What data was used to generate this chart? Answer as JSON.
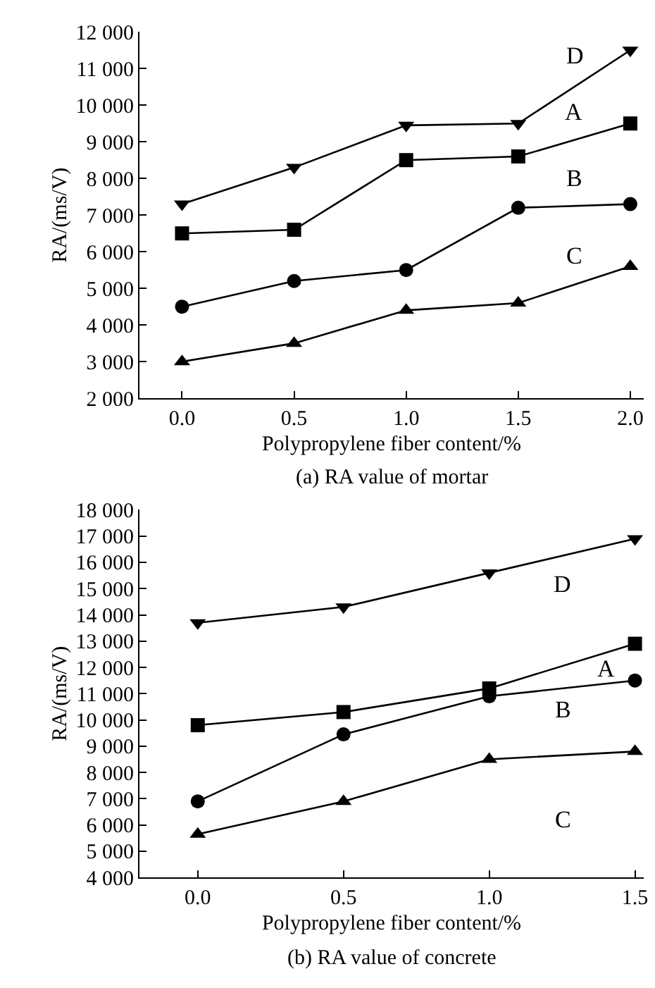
{
  "chart_data": [
    {
      "type": "line",
      "title": "(a) RA value of mortar",
      "xlabel": "Polypropylene fiber content/%",
      "ylabel": "RA/(ms/V)",
      "x": [
        0.0,
        0.5,
        1.0,
        1.5,
        2.0
      ],
      "xlim": [
        -0.19,
        2.06
      ],
      "xticks": [
        {
          "value": 0,
          "label": "0.0"
        },
        {
          "value": 0.5,
          "label": "0.5"
        },
        {
          "value": 1,
          "label": "1.0"
        },
        {
          "value": 1.5,
          "label": "1.5"
        },
        {
          "value": 2,
          "label": "2.0"
        }
      ],
      "ylim": [
        2000,
        12000
      ],
      "yticks": [
        {
          "value": 2000,
          "label": "2 000"
        },
        {
          "value": 3000,
          "label": "3 000"
        },
        {
          "value": 4000,
          "label": "4 000"
        },
        {
          "value": 5000,
          "label": "5 000"
        },
        {
          "value": 6000,
          "label": "6 000"
        },
        {
          "value": 7000,
          "label": "7 000"
        },
        {
          "value": 8000,
          "label": "8 000"
        },
        {
          "value": 9000,
          "label": "9 000"
        },
        {
          "value": 10000,
          "label": "10 000"
        },
        {
          "value": 11000,
          "label": "11 000"
        },
        {
          "value": 12000,
          "label": "12 000"
        }
      ],
      "grid": false,
      "legend": false,
      "series": [
        {
          "name": "A",
          "color": "#000000",
          "marker": "square",
          "values": [
            6500,
            6600,
            8500,
            8600,
            9500
          ]
        },
        {
          "name": "B",
          "color": "#000000",
          "marker": "circle",
          "values": [
            4500,
            5200,
            5500,
            7200,
            7300
          ]
        },
        {
          "name": "C",
          "color": "#000000",
          "marker": "triangle",
          "values": [
            3000,
            3500,
            4400,
            4600,
            5600
          ]
        },
        {
          "name": "D",
          "color": "#000000",
          "marker": "triangle-down",
          "values": [
            7300,
            8300,
            9450,
            9500,
            11500
          ]
        }
      ]
    },
    {
      "type": "line",
      "title": "(b) RA value of concrete",
      "xlabel": "Polypropylene fiber content/%",
      "ylabel": "RA/(ms/V)",
      "x": [
        0.0,
        0.5,
        1.0,
        1.5
      ],
      "xlim": [
        -0.2,
        1.53
      ],
      "xticks": [
        {
          "value": 0,
          "label": "0.0"
        },
        {
          "value": 0.5,
          "label": "0.5"
        },
        {
          "value": 1,
          "label": "1.0"
        },
        {
          "value": 1.5,
          "label": "1.5"
        }
      ],
      "ylim": [
        4000,
        18000
      ],
      "yticks": [
        {
          "value": 4000,
          "label": "4 000"
        },
        {
          "value": 5000,
          "label": "5 000"
        },
        {
          "value": 6000,
          "label": "6 000"
        },
        {
          "value": 7000,
          "label": "7 000"
        },
        {
          "value": 8000,
          "label": "8 000"
        },
        {
          "value": 9000,
          "label": "9 000"
        },
        {
          "value": 10000,
          "label": "10 000"
        },
        {
          "value": 11000,
          "label": "11 000"
        },
        {
          "value": 12000,
          "label": "12 000"
        },
        {
          "value": 13000,
          "label": "13 000"
        },
        {
          "value": 14000,
          "label": "14 000"
        },
        {
          "value": 15000,
          "label": "15 000"
        },
        {
          "value": 16000,
          "label": "16 000"
        },
        {
          "value": 17000,
          "label": "17 000"
        },
        {
          "value": 18000,
          "label": "18 000"
        }
      ],
      "grid": false,
      "legend": false,
      "series": [
        {
          "name": "A",
          "color": "#000000",
          "marker": "square",
          "values": [
            9800,
            10300,
            11200,
            12900
          ]
        },
        {
          "name": "B",
          "color": "#000000",
          "marker": "circle",
          "values": [
            6900,
            9450,
            10900,
            11500
          ]
        },
        {
          "name": "C",
          "color": "#000000",
          "marker": "triangle",
          "values": [
            5650,
            6900,
            8500,
            8800
          ]
        },
        {
          "name": "D",
          "color": "#000000",
          "marker": "triangle-down",
          "values": [
            13700,
            14300,
            15600,
            16900
          ]
        }
      ]
    }
  ]
}
